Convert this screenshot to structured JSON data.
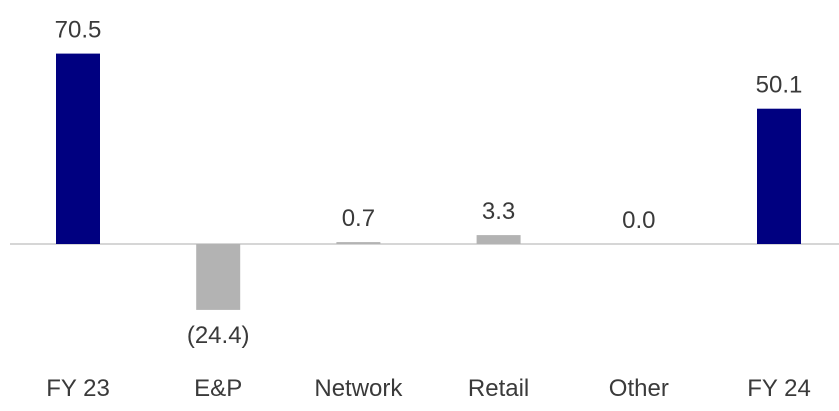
{
  "chart_data": {
    "type": "bar",
    "title": "",
    "xlabel": "",
    "ylabel": "",
    "categories": [
      "FY 23",
      "E&P",
      "Network",
      "Retail",
      "Other",
      "FY 24"
    ],
    "values": [
      70.5,
      -24.4,
      0.7,
      3.3,
      0.0,
      50.1
    ],
    "value_labels": [
      "70.5",
      "(24.4)",
      "0.7",
      "3.3",
      "0.0",
      "50.1"
    ],
    "ylim": [
      -35,
      80
    ],
    "grid": false,
    "legend": "none",
    "colors": {
      "total": "#000080",
      "change": "#B3B3B3",
      "baseline": "#C8C8C8",
      "text": "#3A3A3A"
    },
    "bar_kinds": [
      "total",
      "change",
      "change",
      "change",
      "change",
      "total"
    ]
  }
}
